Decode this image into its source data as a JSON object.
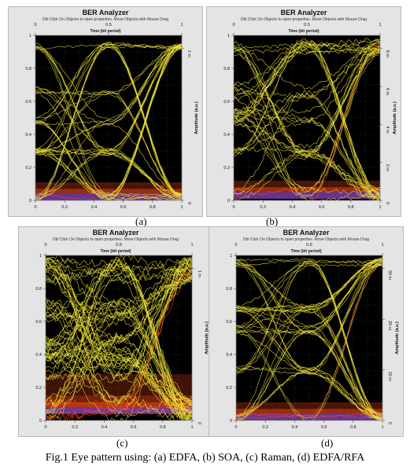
{
  "panels": [
    {
      "id": "a",
      "title": "BER Analyzer",
      "hint": "Dbl Click On Objects to open properties.  Move Objects with Mouse Drag",
      "top_axis_title": "Time (bit period)",
      "right_axis_title": "Amplitude (a.u.)",
      "caption": "(a)"
    },
    {
      "id": "b",
      "title": "BER Analyzer",
      "hint": "Dbl Click On Objects to open properties.  Move Objects with Mouse Drag",
      "top_axis_title": "Time (bit period)",
      "right_axis_title": "Amplitude (a.u.)",
      "caption": "(b)"
    },
    {
      "id": "c",
      "title": "BER Analyzer",
      "hint": "Dbl Click On Objects to open properties.  Move Objects with Mouse Drag",
      "top_axis_title": "Time (bit period)",
      "right_axis_title": "Amplitude (a.u.)",
      "caption": "(c)"
    },
    {
      "id": "d",
      "title": "BER Analyzer",
      "hint": "Dbl Click On Objects to open properties.  Move Objects with Mouse Drag",
      "top_axis_title": "Time (bit period)",
      "right_axis_title": "Amplitude (a.u.)",
      "caption": "(d)"
    }
  ],
  "figure_caption": "Fig.1 Eye pattern using: (a) EDFA, (b) SOA, (c) Raman, (d) EDFA/RFA",
  "colors": {
    "background": "#000000",
    "trace": "#f2e63a",
    "grid": "#3a3a3a",
    "panel": "#e4e4e4",
    "noise_hot": "#ff4a1a",
    "noise_cool": "#3a3aff"
  },
  "chart_data": [
    {
      "type": "line",
      "panel": "a",
      "title": "BER Analyzer",
      "xlabel": "Time (bit period)",
      "ylabel": "Amplitude (a.u.)",
      "xlim": [
        0,
        1
      ],
      "ylim": [
        0,
        1
      ],
      "grid": true,
      "x_ticks_bottom": [
        "0",
        "0.2",
        "0.4",
        "0.6",
        "0.8",
        "1"
      ],
      "x_ticks_top": [
        "0",
        "0.5",
        "1"
      ],
      "y_ticks_left": [
        "0",
        "0.2",
        "0.4",
        "0.6",
        "0.8",
        "1"
      ],
      "y_ticks_right": [
        "0",
        "1 m"
      ],
      "eye": {
        "high_level": 0.94,
        "low_level": 0.02,
        "crossing_x": 0.5,
        "crossing_y": 0.12,
        "mid_level": 0.48,
        "noise_level": "low"
      }
    },
    {
      "type": "line",
      "panel": "b",
      "title": "BER Analyzer",
      "xlabel": "Time (bit period)",
      "ylabel": "Amplitude (a.u.)",
      "xlim": [
        0,
        1
      ],
      "ylim": [
        0,
        1
      ],
      "grid": true,
      "x_ticks_bottom": [
        "0",
        "0.2",
        "0.4",
        "0.6",
        "0.8",
        "1"
      ],
      "x_ticks_top": [
        "0",
        "0.5",
        "1"
      ],
      "y_ticks_left": [
        "0",
        "0.2",
        "0.4",
        "0.6",
        "0.8",
        "1"
      ],
      "y_ticks_right": [
        "0",
        "2 m",
        "4 m",
        "6 m",
        "8 m"
      ],
      "eye": {
        "high_level": 0.93,
        "low_level": 0.03,
        "crossing_x": 0.5,
        "crossing_y": 0.35,
        "mid_level": 0.5,
        "noise_level": "medium"
      }
    },
    {
      "type": "line",
      "panel": "c",
      "title": "BER Analyzer",
      "xlabel": "Time (bit period)",
      "ylabel": "Amplitude (a.u.)",
      "xlim": [
        0,
        1
      ],
      "ylim": [
        0,
        1
      ],
      "grid": true,
      "x_ticks_bottom": [
        "0",
        "0.2",
        "0.4",
        "0.6",
        "0.8",
        "1"
      ],
      "x_ticks_top": [
        "0",
        "0.5",
        "1"
      ],
      "y_ticks_left": [
        "0",
        "0.2",
        "0.4",
        "0.6",
        "0.8",
        "1"
      ],
      "y_ticks_right": [
        "0",
        "1 m"
      ],
      "eye": {
        "high_level": 0.92,
        "low_level": 0.06,
        "crossing_x": 0.5,
        "crossing_y": 0.25,
        "mid_level": 0.45,
        "noise_level": "high"
      }
    },
    {
      "type": "line",
      "panel": "d",
      "title": "BER Analyzer",
      "xlabel": "Time (bit period)",
      "ylabel": "Amplitude (a.u.)",
      "xlim": [
        0,
        1
      ],
      "ylim": [
        0,
        1
      ],
      "grid": true,
      "x_ticks_bottom": [
        "0",
        "0.2",
        "0.4",
        "0.6",
        "0.8",
        "1"
      ],
      "x_ticks_top": [
        "0",
        "0.5",
        "1"
      ],
      "y_ticks_left": [
        "0",
        "0.2",
        "0.4",
        "0.6",
        "0.8",
        "1"
      ],
      "y_ticks_right": [
        "0",
        "10 m",
        "20 m",
        "30 m"
      ],
      "eye": {
        "high_level": 0.96,
        "low_level": 0.02,
        "crossing_x": 0.5,
        "crossing_y": 0.12,
        "mid_level": 0.55,
        "noise_level": "low"
      }
    }
  ]
}
